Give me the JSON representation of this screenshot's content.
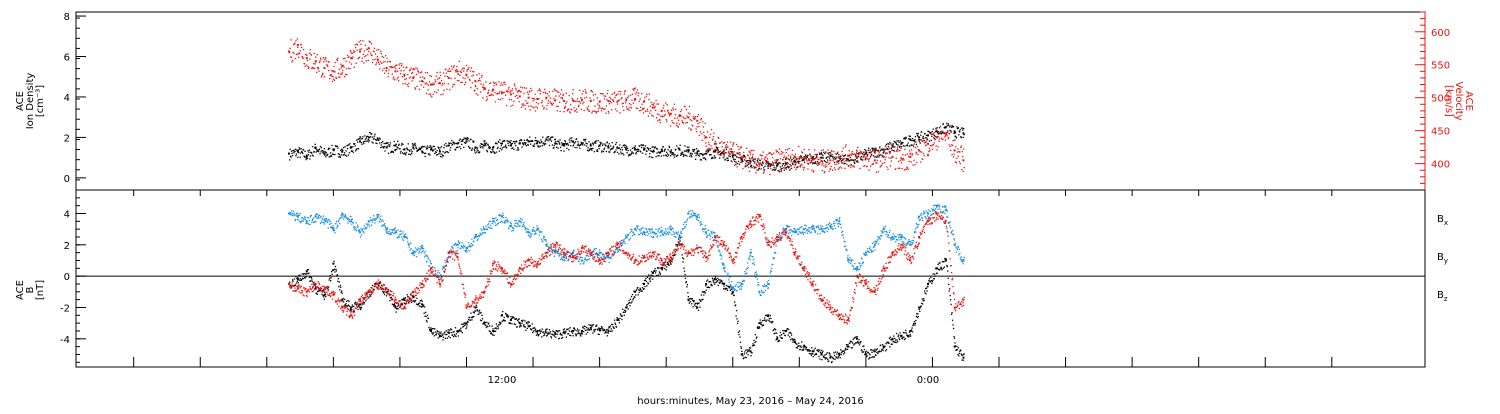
{
  "colors": {
    "black": "#000000",
    "red": "#e8140f",
    "blue": "#1a8fe0"
  },
  "chart_data": [
    {
      "type": "scatter",
      "ylabel_left": [
        "ACE",
        "Ion Density",
        "[cm⁻³]"
      ],
      "ylabel_right": [
        "ACE",
        "Velocity",
        "[km/s]"
      ],
      "ylim_left": [
        -0.6,
        8.2
      ],
      "yticks_left": [
        0,
        2,
        4,
        6,
        8
      ],
      "ylim_right": [
        360,
        630
      ],
      "yticks_right": [
        400,
        450,
        500,
        550,
        600
      ],
      "series": [
        {
          "name": "",
          "axis": "left",
          "color": "#000000",
          "x": [
            0,
            0.5,
            1,
            1.5,
            2,
            2.5,
            3,
            3.5,
            4,
            4.5,
            5,
            5.5,
            6,
            6.5,
            7,
            7.5,
            8,
            8.5,
            9,
            9.5,
            10,
            10.5,
            11,
            11.5,
            12,
            12.5,
            13,
            13.5,
            14,
            14.5,
            15,
            15.5,
            16,
            16.5,
            17,
            17.5,
            18,
            18.5,
            19,
            19.5,
            20,
            20.5,
            21,
            21.5,
            22,
            22.5,
            23,
            23.5,
            24,
            24.5,
            25,
            25.5,
            26,
            26.5,
            27,
            27.5,
            28,
            28.5,
            29,
            29.5,
            30,
            30.5,
            31,
            31.5,
            32,
            32.5,
            33,
            33.5,
            34,
            34.5,
            35,
            35.5,
            36,
            36.5,
            37,
            37.5,
            38
          ],
          "y": [
            1.2,
            1.3,
            1.1,
            1.5,
            1.2,
            1.4,
            1.3,
            1.5,
            1.8,
            2.0,
            1.9,
            1.5,
            1.6,
            1.4,
            1.5,
            1.3,
            1.4,
            1.3,
            1.6,
            1.7,
            1.8,
            1.5,
            1.6,
            1.5,
            1.7,
            1.6,
            1.7,
            1.8,
            1.8,
            1.9,
            1.7,
            1.6,
            1.8,
            1.7,
            1.6,
            1.6,
            1.5,
            1.5,
            1.4,
            1.4,
            1.4,
            1.3,
            1.4,
            1.3,
            1.4,
            1.3,
            1.2,
            1.2,
            1.3,
            1.2,
            1.1,
            0.9,
            0.8,
            0.7,
            0.6,
            0.6,
            0.7,
            0.8,
            0.9,
            1.0,
            1.0,
            1.1,
            1.0,
            0.9,
            1.0,
            1.2,
            1.3,
            1.4,
            1.6,
            1.7,
            1.9,
            2.0,
            2.1,
            2.3,
            2.5,
            2.3,
            2.2
          ]
        },
        {
          "name": "",
          "axis": "right",
          "color": "#e8140f",
          "x": [
            0,
            0.5,
            1,
            1.5,
            2,
            2.5,
            3,
            3.5,
            4,
            4.5,
            5,
            5.5,
            6,
            6.5,
            7,
            7.5,
            8,
            8.5,
            9,
            9.5,
            10,
            10.5,
            11,
            11.5,
            12,
            12.5,
            13,
            13.5,
            14,
            14.5,
            15,
            15.5,
            16,
            16.5,
            17,
            17.5,
            18,
            18.5,
            19,
            19.5,
            20,
            20.5,
            21,
            21.5,
            22,
            22.5,
            23,
            23.5,
            24,
            24.5,
            25,
            25.5,
            26,
            26.5,
            27,
            27.5,
            28,
            28.5,
            29,
            29.5,
            30,
            30.5,
            31,
            31.5,
            32,
            32.5,
            33,
            33.5,
            34,
            34.5,
            35,
            35.5,
            36,
            36.5,
            37,
            37.5,
            38
          ],
          "y": [
            570,
            580,
            560,
            555,
            545,
            540,
            548,
            560,
            570,
            575,
            558,
            545,
            540,
            535,
            530,
            525,
            520,
            522,
            530,
            540,
            535,
            525,
            515,
            512,
            508,
            505,
            502,
            500,
            498,
            500,
            496,
            495,
            496,
            497,
            495,
            494,
            495,
            494,
            496,
            498,
            494,
            485,
            480,
            475,
            472,
            470,
            465,
            440,
            430,
            420,
            415,
            410,
            405,
            400,
            402,
            405,
            408,
            410,
            408,
            406,
            404,
            405,
            410,
            412,
            410,
            408,
            405,
            410,
            410,
            408,
            410,
            420,
            430,
            440,
            445,
            420,
            405
          ]
        }
      ]
    },
    {
      "type": "scatter",
      "ylabel": [
        "ACE",
        "B",
        "[nT]"
      ],
      "ylim": [
        -5.8,
        5.5
      ],
      "yticks": [
        -4,
        -2,
        0,
        2,
        4
      ],
      "zero_line": true,
      "legend_placement": "right",
      "series": [
        {
          "name": "Bx",
          "label_main": "B",
          "label_sub": "x",
          "color": "#000000",
          "x": [
            0,
            0.5,
            1,
            1.5,
            2,
            2.5,
            3,
            3.5,
            4,
            4.5,
            5,
            5.5,
            6,
            6.5,
            7,
            7.5,
            8,
            8.5,
            9,
            9.5,
            10,
            10.5,
            11,
            11.5,
            12,
            12.5,
            13,
            13.5,
            14,
            14.5,
            15,
            15.5,
            16,
            16.5,
            17,
            17.5,
            18,
            18.5,
            19,
            19.5,
            20,
            20.5,
            21,
            21.5,
            22,
            22.5,
            23,
            23.5,
            24,
            24.5,
            25,
            25.5,
            26,
            26.5,
            27,
            27.5,
            28,
            28.5,
            29,
            29.5,
            30,
            30.5,
            31,
            31.5,
            32,
            32.5,
            33,
            33.5,
            34,
            34.5,
            35,
            35.5,
            36,
            36.5,
            37,
            37.5,
            38
          ],
          "y": [
            -0.5,
            -0.2,
            0.3,
            -0.8,
            -1.2,
            0.8,
            -1.5,
            -2.0,
            -1.8,
            -1.0,
            -0.5,
            -1.0,
            -2.0,
            -1.5,
            -1.3,
            -1.8,
            -3.5,
            -3.8,
            -3.6,
            -3.5,
            -3.0,
            -2.0,
            -3.0,
            -3.5,
            -2.5,
            -2.8,
            -3.0,
            -3.2,
            -3.5,
            -3.6,
            -3.7,
            -3.6,
            -3.5,
            -3.5,
            -3.3,
            -3.4,
            -3.5,
            -2.8,
            -2.0,
            -1.0,
            -0.5,
            0.2,
            0.5,
            1.0,
            2.5,
            -1.5,
            -2.0,
            -0.5,
            -0.2,
            -0.5,
            -1.0,
            -5.0,
            -4.8,
            -3.0,
            -2.5,
            -4.0,
            -3.5,
            -4.2,
            -4.5,
            -4.8,
            -5.0,
            -5.2,
            -5.0,
            -4.5,
            -4.0,
            -5.0,
            -4.8,
            -4.5,
            -4.0,
            -3.8,
            -3.5,
            -2.0,
            -0.5,
            0.5,
            1.0,
            -4.5,
            -5.2
          ]
        },
        {
          "name": "By",
          "label_main": "B",
          "label_sub": "y",
          "color": "#1a8fe0",
          "x": [
            0,
            0.5,
            1,
            1.5,
            2,
            2.5,
            3,
            3.5,
            4,
            4.5,
            5,
            5.5,
            6,
            6.5,
            7,
            7.5,
            8,
            8.5,
            9,
            9.5,
            10,
            10.5,
            11,
            11.5,
            12,
            12.5,
            13,
            13.5,
            14,
            14.5,
            15,
            15.5,
            16,
            16.5,
            17,
            17.5,
            18,
            18.5,
            19,
            19.5,
            20,
            20.5,
            21,
            21.5,
            22,
            22.5,
            23,
            23.5,
            24,
            24.5,
            25,
            25.5,
            26,
            26.5,
            27,
            27.5,
            28,
            28.5,
            29,
            29.5,
            30,
            30.5,
            31,
            31.5,
            32,
            32.5,
            33,
            33.5,
            34,
            34.5,
            35,
            35.5,
            36,
            36.5,
            37,
            37.5,
            38
          ],
          "y": [
            4.0,
            3.8,
            3.5,
            3.8,
            3.6,
            3.0,
            4.0,
            3.5,
            2.8,
            3.5,
            3.8,
            3.0,
            2.8,
            2.5,
            1.5,
            1.8,
            0.5,
            0.0,
            1.5,
            2.0,
            1.8,
            2.5,
            3.0,
            3.5,
            3.8,
            3.2,
            3.5,
            2.8,
            3.0,
            2.0,
            1.5,
            1.2,
            1.5,
            1.0,
            1.5,
            1.5,
            1.2,
            1.8,
            2.5,
            3.0,
            2.8,
            2.8,
            2.9,
            3.0,
            2.5,
            4.0,
            3.8,
            2.8,
            2.5,
            0.5,
            -0.8,
            -0.5,
            1.5,
            -1.0,
            -0.5,
            2.5,
            3.0,
            2.8,
            3.0,
            3.0,
            3.0,
            3.2,
            3.5,
            1.0,
            0.5,
            1.5,
            2.0,
            3.0,
            2.5,
            2.5,
            2.0,
            3.8,
            4.0,
            4.5,
            4.2,
            2.0,
            1.0
          ]
        },
        {
          "name": "Bz",
          "label_main": "B",
          "label_sub": "z",
          "color": "#e8140f",
          "x": [
            0,
            0.5,
            1,
            1.5,
            2,
            2.5,
            3,
            3.5,
            4,
            4.5,
            5,
            5.5,
            6,
            6.5,
            7,
            7.5,
            8,
            8.5,
            9,
            9.5,
            10,
            10.5,
            11,
            11.5,
            12,
            12.5,
            13,
            13.5,
            14,
            14.5,
            15,
            15.5,
            16,
            16.5,
            17,
            17.5,
            18,
            18.5,
            19,
            19.5,
            20,
            20.5,
            21,
            21.5,
            22,
            22.5,
            23,
            23.5,
            24,
            24.5,
            25,
            25.5,
            26,
            26.5,
            27,
            27.5,
            28,
            28.5,
            29,
            29.5,
            30,
            30.5,
            31,
            31.5,
            32,
            32.5,
            33,
            33.5,
            34,
            34.5,
            35,
            35.5,
            36,
            36.5,
            37,
            37.5,
            38
          ],
          "y": [
            -0.5,
            -0.8,
            -1.0,
            -0.5,
            -0.8,
            -1.2,
            -2.0,
            -2.5,
            -1.5,
            -1.0,
            -0.5,
            -0.8,
            -1.5,
            -2.0,
            -1.0,
            -0.5,
            0.5,
            -0.5,
            1.5,
            1.2,
            -2.0,
            -1.5,
            -1.0,
            0.8,
            0.5,
            -0.5,
            0.5,
            1.0,
            0.8,
            1.5,
            2.0,
            1.5,
            1.2,
            1.8,
            1.5,
            1.0,
            1.5,
            2.0,
            1.5,
            1.0,
            1.2,
            1.5,
            1.0,
            1.2,
            2.0,
            1.5,
            1.8,
            1.2,
            2.5,
            2.0,
            1.0,
            2.5,
            3.5,
            3.8,
            2.0,
            2.5,
            2.8,
            1.5,
            0.5,
            -0.5,
            -1.5,
            -2.0,
            -2.5,
            -2.8,
            0.0,
            -0.5,
            -1.0,
            0.5,
            1.5,
            2.0,
            1.0,
            2.5,
            3.5,
            4.0,
            3.5,
            -2.0,
            -1.5
          ]
        }
      ]
    }
  ],
  "x_axis": {
    "xlim": [
      -12,
      64
    ],
    "xticks": [
      -8.75,
      -5,
      -1.25,
      2.5,
      6.25,
      10,
      13.75,
      17.5,
      21.25,
      25,
      28.75,
      32.5,
      36.25,
      40,
      43.75,
      47.5,
      51.25,
      55,
      58.75
    ],
    "tick_labels": [
      {
        "x": 12,
        "label": "12:00"
      },
      {
        "x": 36,
        "label": "0:00"
      }
    ],
    "xlabel": "hours:minutes, May 23, 2016 – May 24, 2016"
  }
}
